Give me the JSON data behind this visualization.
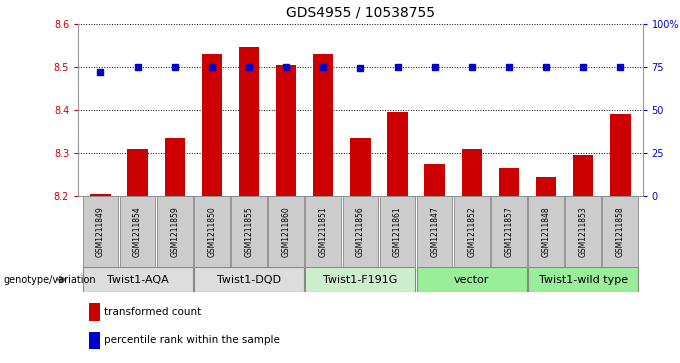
{
  "title": "GDS4955 / 10538755",
  "samples": [
    "GSM1211849",
    "GSM1211854",
    "GSM1211859",
    "GSM1211850",
    "GSM1211855",
    "GSM1211860",
    "GSM1211851",
    "GSM1211856",
    "GSM1211861",
    "GSM1211847",
    "GSM1211852",
    "GSM1211857",
    "GSM1211848",
    "GSM1211853",
    "GSM1211858"
  ],
  "bar_values": [
    8.205,
    8.31,
    8.335,
    8.53,
    8.545,
    8.505,
    8.53,
    8.335,
    8.395,
    8.275,
    8.31,
    8.265,
    8.245,
    8.295,
    8.39
  ],
  "dot_values": [
    72,
    75,
    75,
    75,
    75,
    75,
    75,
    74,
    75,
    75,
    75,
    75,
    75,
    75,
    75
  ],
  "ylim_left": [
    8.2,
    8.6
  ],
  "ylim_right": [
    0,
    100
  ],
  "yticks_left": [
    8.2,
    8.3,
    8.4,
    8.5,
    8.6
  ],
  "yticks_right": [
    0,
    25,
    50,
    75,
    100
  ],
  "bar_color": "#cc0000",
  "dot_color": "#0000cc",
  "groups": [
    {
      "label": "Twist1-AQA",
      "indices": [
        0,
        1,
        2
      ],
      "color": "#dddddd"
    },
    {
      "label": "Twist1-DQD",
      "indices": [
        3,
        4,
        5
      ],
      "color": "#dddddd"
    },
    {
      "label": "Twist1-F191G",
      "indices": [
        6,
        7,
        8
      ],
      "color": "#cceecc"
    },
    {
      "label": "vector",
      "indices": [
        9,
        10,
        11
      ],
      "color": "#99ee99"
    },
    {
      "label": "Twist1-wild type",
      "indices": [
        12,
        13,
        14
      ],
      "color": "#99ee99"
    }
  ],
  "legend_red_label": "transformed count",
  "legend_blue_label": "percentile rank within the sample",
  "genotype_label": "genotype/variation",
  "bg_color": "#ffffff",
  "tick_color_left": "#cc0000",
  "tick_color_right": "#0000cc",
  "sample_box_color": "#cccccc",
  "sample_box_edge": "#888888"
}
